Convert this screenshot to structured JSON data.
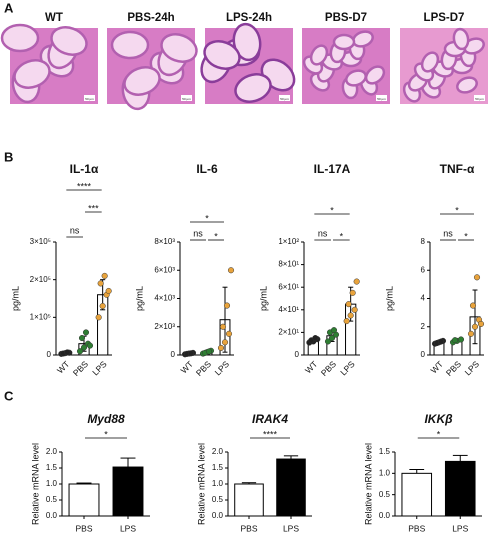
{
  "panel_labels": [
    "A",
    "B",
    "C"
  ],
  "panel_a": {
    "labels": [
      "WT",
      "PBS-24h",
      "LPS-24h",
      "PBS-D7",
      "LPS-D7"
    ],
    "scale_bar_label": "50 µm"
  },
  "chart_data": [
    {
      "type": "bar",
      "title": "IL-1α",
      "ylabel": "pg/mL",
      "categories": [
        "WT",
        "PBS",
        "LPS"
      ],
      "values": [
        5000,
        30000,
        160000
      ],
      "errors": [
        2000,
        20000,
        40000
      ],
      "color": "#ffffff",
      "point_colors": [
        "#222222",
        "#2e7d32",
        "#e8a33c"
      ],
      "points": [
        [
          3000,
          5000,
          6000,
          4000,
          7000
        ],
        [
          10000,
          20000,
          30000,
          45000,
          60000,
          25000
        ],
        [
          100000,
          130000,
          160000,
          190000,
          210000,
          170000
        ]
      ],
      "ylim": [
        0,
        300000
      ],
      "yticks": [
        0,
        {
          "value": 100000,
          "label": "1×10⁵"
        },
        {
          "value": 200000,
          "label": "2×10⁵"
        },
        {
          "value": 300000,
          "label": "3×10⁵"
        }
      ],
      "annotations": [
        {
          "text": "ns",
          "from": 0,
          "to": 1
        },
        {
          "text": "***",
          "from": 1,
          "to": 2
        },
        {
          "text": "****",
          "from": 0,
          "to": 2
        }
      ]
    },
    {
      "type": "bar",
      "title": "IL-6",
      "ylabel": "pg/mL",
      "categories": [
        "WT",
        "PBS",
        "LPS"
      ],
      "values": [
        100,
        200,
        2500
      ],
      "errors": [
        50,
        100,
        2300
      ],
      "color": "#ffffff",
      "point_colors": [
        "#222222",
        "#2e7d32",
        "#e8a33c"
      ],
      "points": [
        [
          50,
          100,
          150,
          80,
          120
        ],
        [
          100,
          200,
          300,
          150,
          250
        ],
        [
          500,
          900,
          1500,
          2000,
          3500,
          6000
        ]
      ],
      "ylim": [
        0,
        8000
      ],
      "yticks": [
        0,
        {
          "value": 2000,
          "label": "2×10³"
        },
        {
          "value": 4000,
          "label": "4×10³"
        },
        {
          "value": 6000,
          "label": "6×10³"
        },
        {
          "value": 8000,
          "label": "8×10³"
        }
      ],
      "annotations": [
        {
          "text": "ns",
          "from": 0,
          "to": 1
        },
        {
          "text": "*",
          "from": 1,
          "to": 2,
          "color": "#e0201b"
        },
        {
          "text": "*",
          "from": 0,
          "to": 2
        }
      ]
    },
    {
      "type": "bar",
      "title": "IL-17A",
      "ylabel": "pg/mL",
      "categories": [
        "WT",
        "PBS",
        "LPS"
      ],
      "values": [
        13,
        17,
        45
      ],
      "errors": [
        2,
        5,
        15
      ],
      "color": "#ffffff",
      "point_colors": [
        "#222222",
        "#2e7d32",
        "#e8a33c"
      ],
      "points": [
        [
          11,
          12,
          14,
          13,
          15
        ],
        [
          12,
          15,
          18,
          20,
          22
        ],
        [
          30,
          35,
          40,
          45,
          55,
          65
        ]
      ],
      "ylim": [
        0,
        100
      ],
      "yticks": [
        0,
        {
          "value": 20,
          "label": "2×10¹"
        },
        {
          "value": 40,
          "label": "4×10¹"
        },
        {
          "value": 60,
          "label": "6×10¹"
        },
        {
          "value": 80,
          "label": "8×10¹"
        },
        {
          "value": 100,
          "label": "1×10²"
        }
      ],
      "annotations": [
        {
          "text": "ns",
          "from": 0,
          "to": 1
        },
        {
          "text": "*",
          "from": 1,
          "to": 2
        },
        {
          "text": "*",
          "from": 0,
          "to": 2
        }
      ]
    },
    {
      "type": "bar",
      "title": "TNF-α",
      "ylabel": "pg/mL",
      "categories": [
        "WT",
        "PBS",
        "LPS"
      ],
      "values": [
        0.9,
        1.0,
        2.7
      ],
      "errors": [
        0.1,
        0.1,
        1.9
      ],
      "color": "#ffffff",
      "point_colors": [
        "#222222",
        "#2e7d32",
        "#e8a33c"
      ],
      "points": [
        [
          0.8,
          0.9,
          1.0,
          0.85,
          0.95
        ],
        [
          0.9,
          1.0,
          1.1,
          1.05
        ],
        [
          1.5,
          2.0,
          2.5,
          3.5,
          5.5,
          2.2
        ]
      ],
      "ylim": [
        0,
        8
      ],
      "yticks": [
        0,
        2,
        4,
        6,
        8
      ],
      "annotations": [
        {
          "text": "ns",
          "from": 0,
          "to": 1
        },
        {
          "text": "*",
          "from": 1,
          "to": 2
        },
        {
          "text": "*",
          "from": 0,
          "to": 2
        }
      ]
    },
    {
      "type": "bar",
      "title": "Myd88",
      "ylabel": "Relative mRNA level",
      "categories": [
        "PBS",
        "LPS"
      ],
      "values": [
        1.0,
        1.53
      ],
      "errors": [
        0.03,
        0.28
      ],
      "bar_colors": [
        "#ffffff",
        "#000000"
      ],
      "ylim": [
        0,
        2.0
      ],
      "yticks": [
        {
          "value": 0,
          "label": "0.0"
        },
        0.5,
        {
          "value": 1.0,
          "label": "1.0"
        },
        1.5,
        {
          "value": 2.0,
          "label": "2.0"
        }
      ],
      "annotations": [
        {
          "text": "*",
          "from": 0,
          "to": 1
        }
      ]
    },
    {
      "type": "bar",
      "title": "IRAK4",
      "ylabel": "Relative mRNA level",
      "categories": [
        "PBS",
        "LPS"
      ],
      "values": [
        1.0,
        1.78
      ],
      "errors": [
        0.04,
        0.1
      ],
      "bar_colors": [
        "#ffffff",
        "#000000"
      ],
      "ylim": [
        0,
        2.0
      ],
      "yticks": [
        {
          "value": 0,
          "label": "0.0"
        },
        0.5,
        {
          "value": 1.0,
          "label": "1.0"
        },
        1.5,
        {
          "value": 2.0,
          "label": "2.0"
        }
      ],
      "annotations": [
        {
          "text": "****",
          "from": 0,
          "to": 1
        }
      ]
    },
    {
      "type": "bar",
      "title": "IKKβ",
      "ylabel": "Relative mRNA level",
      "categories": [
        "PBS",
        "LPS"
      ],
      "values": [
        1.0,
        1.28
      ],
      "errors": [
        0.09,
        0.14
      ],
      "bar_colors": [
        "#ffffff",
        "#000000"
      ],
      "ylim": [
        0,
        1.5
      ],
      "yticks": [
        {
          "value": 0,
          "label": "0.0"
        },
        0.5,
        {
          "value": 1.0,
          "label": "1.0"
        },
        1.5
      ],
      "annotations": [
        {
          "text": "*",
          "from": 0,
          "to": 1
        }
      ]
    }
  ]
}
